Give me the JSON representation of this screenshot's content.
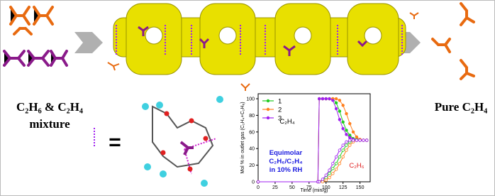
{
  "left_label": {
    "line1": "C₂H₆ & C₂H₄",
    "line2": "mixture"
  },
  "right_label": "Pure C₂H₄",
  "equals": "=",
  "chart_data": {
    "type": "line",
    "ylabel": "Mol % in outlet gas (C₂H₄+C₂H₆)",
    "xlabel": "Time (min/g)",
    "annotations": {
      "c2h4": "C₂H₄",
      "c2h6": "C₂H₆",
      "condition": [
        "Equimolar",
        "C₂H₆/C₂H₄",
        "in 10% RH"
      ]
    },
    "x": [
      0,
      88,
      90,
      95,
      100,
      105,
      110,
      115,
      120,
      125,
      130,
      135,
      140,
      145,
      150,
      155,
      160
    ],
    "series": [
      {
        "name": "1",
        "color": "#22cc22",
        "values": [
          0,
          0,
          100,
          100,
          100,
          100,
          100,
          95,
          85,
          72,
          62,
          56,
          52,
          51,
          50,
          50,
          50
        ],
        "c2h6_values": [
          0,
          0,
          0,
          2,
          5,
          10,
          16,
          22,
          30,
          38,
          44,
          48,
          50,
          50,
          50,
          50,
          50
        ]
      },
      {
        "name": "2",
        "color": "#ff7f1e",
        "values": [
          0,
          0,
          100,
          100,
          100,
          100,
          100,
          100,
          98,
          92,
          82,
          70,
          60,
          54,
          51,
          50,
          50
        ],
        "c2h6_values": [
          0,
          0,
          0,
          0,
          2,
          5,
          10,
          15,
          22,
          30,
          38,
          44,
          48,
          50,
          50,
          50,
          50
        ]
      },
      {
        "name": "3",
        "color": "#a020f0",
        "values": [
          0,
          0,
          100,
          100,
          100,
          100,
          98,
          88,
          75,
          64,
          57,
          53,
          51,
          50,
          50,
          50,
          50
        ],
        "c2h6_values": [
          0,
          0,
          0,
          3,
          8,
          14,
          22,
          30,
          38,
          44,
          48,
          50,
          50,
          50,
          50,
          50,
          50
        ]
      }
    ],
    "xlim": [
      0,
      165
    ],
    "ylim": [
      0,
      106
    ],
    "xticks": [
      0,
      25,
      50,
      75,
      100,
      125,
      150
    ],
    "yticks": [
      0,
      20,
      40,
      60,
      80,
      100
    ]
  }
}
